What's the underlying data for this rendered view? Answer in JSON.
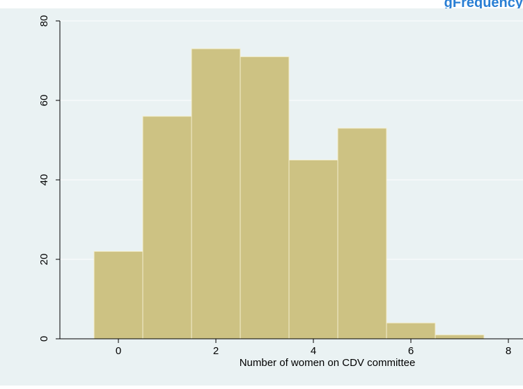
{
  "header": {
    "corner_title_fragment": "gFrequency"
  },
  "colors": {
    "plot_background": "#eaf2f3",
    "bar_fill": "#cdc283",
    "bar_stroke": "#f4efcf",
    "gridline": "#ffffff",
    "axis": "#000000",
    "title_accent": "#2a7fd4"
  },
  "chart_data": {
    "type": "bar",
    "title": "",
    "xlabel": "Number of women on CDV committee",
    "ylabel": "",
    "categories": [
      "0",
      "1",
      "2",
      "3",
      "4",
      "5",
      "6",
      "7"
    ],
    "values": [
      22,
      56,
      73,
      71,
      45,
      53,
      4,
      1
    ],
    "bin_width": 1,
    "xlim": [
      -1.2,
      8.3
    ],
    "ylim": [
      0,
      80
    ],
    "x_ticks": [
      0,
      2,
      4,
      6,
      8
    ],
    "y_ticks": [
      0,
      20,
      40,
      60,
      80
    ],
    "grid": true,
    "legend": "none"
  }
}
